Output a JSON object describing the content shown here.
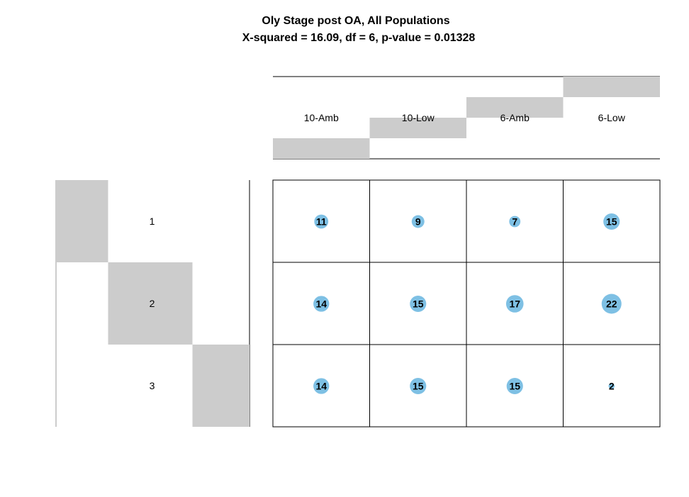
{
  "chart_data": {
    "type": "balloon",
    "title": "Oly Stage post OA, All Populations",
    "subtitle": "X-squared = 16.09, df = 6, p-value = 0.01328",
    "columns": [
      "10-Amb",
      "10-Low",
      "6-Amb",
      "6-Low"
    ],
    "rows": [
      "1",
      "2",
      "3"
    ],
    "column_totals": [
      39,
      39,
      39,
      39
    ],
    "row_totals": [
      42,
      68,
      46
    ],
    "values": [
      [
        11,
        9,
        7,
        15
      ],
      [
        14,
        15,
        17,
        22
      ],
      [
        14,
        15,
        15,
        2
      ]
    ],
    "colors": {
      "balloon": "#7ec0e4",
      "marginal_bar": "#cccccc",
      "grid": "#000000"
    }
  }
}
